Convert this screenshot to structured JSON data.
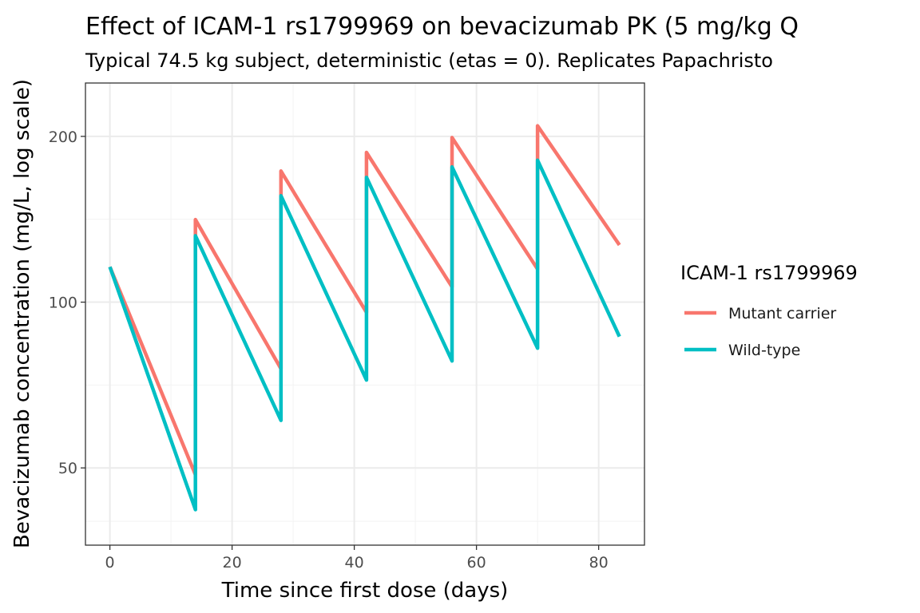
{
  "colors": {
    "mutant": "#F8766D",
    "wildtype": "#00BFC4",
    "panel_border": "#333333",
    "tick": "#333333"
  },
  "chart_data": {
    "type": "line",
    "title": "Effect of ICAM-1 rs1799969 on bevacizumab PK (5 mg/kg Q",
    "subtitle": "Typical 74.5 kg subject, deterministic (etas = 0). Replicates Papachristo",
    "xlabel": "Time since first dose (days)",
    "ylabel": "Bevacizumab concentration (mg/L, log scale)",
    "xlim": [
      -4,
      87.5
    ],
    "ylim": [
      36.2,
      250
    ],
    "yscale": "log10",
    "x_ticks": [
      0,
      20,
      40,
      60,
      80
    ],
    "x_tick_labels": [
      "0",
      "20",
      "40",
      "60",
      "80"
    ],
    "x_minor_ticks": [
      10,
      30,
      50,
      70
    ],
    "y_ticks": [
      50,
      100,
      200
    ],
    "y_tick_labels": [
      "50",
      "100",
      "200"
    ],
    "y_minor_ticks": [
      40,
      70.7,
      141.4
    ],
    "dose_interval_days": 14,
    "n_doses": 6,
    "end_day": 83.4,
    "legend": {
      "title": "ICAM-1 rs1799969",
      "position": "right",
      "entries": [
        "Mutant carrier",
        "Wild-type"
      ]
    },
    "series": [
      {
        "name": "Mutant carrier",
        "color": "#F8766D",
        "peaks": [
          115.9,
          141.2,
          173.0,
          187.0,
          199.0,
          209.0
        ],
        "troughs": [
          48.6,
          75.7,
          95.8,
          106.6,
          114.8,
          127.0
        ]
      },
      {
        "name": "Wild-type",
        "color": "#00BFC4",
        "peaks": [
          115.9,
          132.0,
          156.0,
          168.5,
          176.0,
          181.0
        ],
        "troughs": [
          42.0,
          61.0,
          72.2,
          78.2,
          82.5,
          86.6
        ]
      }
    ]
  }
}
